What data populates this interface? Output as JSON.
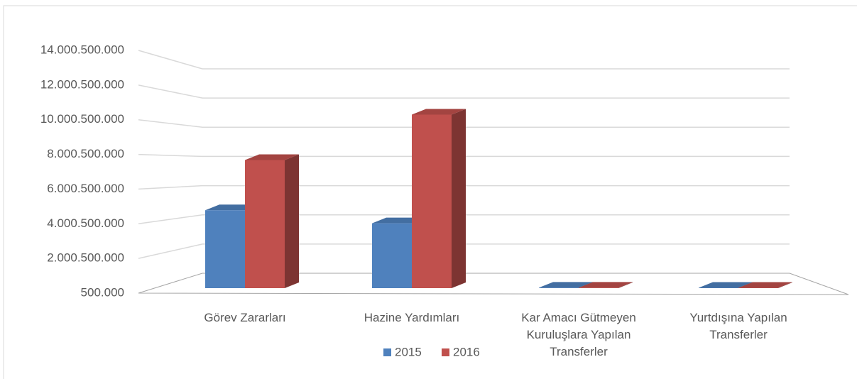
{
  "chart_data": {
    "type": "bar3d",
    "categories": [
      "Görev Zararları",
      "Hazine Yardımları",
      "Kar Amacı Gütmeyen Kuruluşlara Yapılan Transferler",
      "Yurtdışına Yapılan Transferler"
    ],
    "series": [
      {
        "name": "2015",
        "color": "#4f81bd",
        "values": [
          4800000000,
          4000000000,
          30000000,
          20000000
        ]
      },
      {
        "name": "2016",
        "color": "#c0504d",
        "values": [
          7900000000,
          10700000000,
          30000000,
          20000000
        ]
      }
    ],
    "ylim": [
      500000,
      14000500000
    ],
    "yticks": [
      {
        "value": 500000,
        "label": "500.000"
      },
      {
        "value": 2000500000,
        "label": "2.000.500.000"
      },
      {
        "value": 4000500000,
        "label": "4.000.500.000"
      },
      {
        "value": 6000500000,
        "label": "6.000.500.000"
      },
      {
        "value": 8000500000,
        "label": "8.000.500.000"
      },
      {
        "value": 10000500000,
        "label": "10.000.500.000"
      },
      {
        "value": 12000500000,
        "label": "12.000.500.000"
      },
      {
        "value": 14000500000,
        "label": "14.000.500.000"
      }
    ],
    "grid": true,
    "legend": "bottom"
  }
}
